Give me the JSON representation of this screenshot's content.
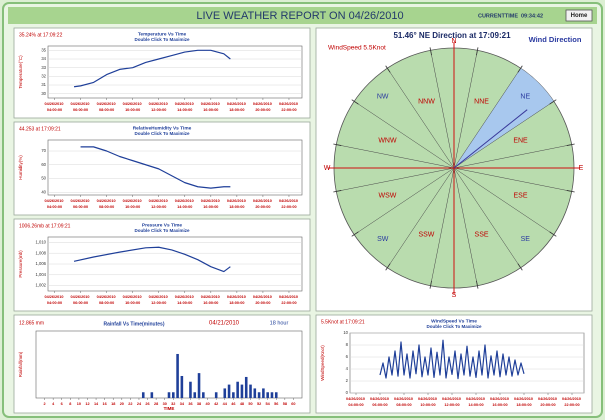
{
  "header": {
    "title": "LIVE WEATHER REPORT ON 04/26/2010",
    "current_time_label": "CURRENTTIME",
    "current_time": "09:34:42",
    "home_button": "Home"
  },
  "chart_data": [
    {
      "type": "line",
      "reading": "35.24% at 17:09:22",
      "title": "Temperature Vs Time",
      "subtitle": "Double Click To Maximize",
      "ylabel": "Temperature(°C)",
      "color": "#1f3f99",
      "x": [
        5.5,
        6,
        7,
        8,
        9,
        10,
        11,
        12,
        13,
        14,
        15,
        16,
        17,
        17.5
      ],
      "values": [
        30.8,
        30.9,
        31.3,
        32.2,
        32.8,
        33.0,
        33.6,
        34.0,
        34.4,
        34.8,
        35.0,
        35.0,
        34.6,
        34.0
      ],
      "xlim": [
        3.5,
        23
      ],
      "ylim": [
        29.5,
        35.5
      ],
      "yticks": [
        30,
        31,
        32,
        33,
        34,
        35
      ],
      "xticks": [
        {
          "value": 4,
          "label": "04/26/2010 04:00:00"
        },
        {
          "value": 6,
          "label": "04/26/2010 06:00:00"
        },
        {
          "value": 8,
          "label": "04/26/2010 08:00:00"
        },
        {
          "value": 10,
          "label": "04/26/2010 10:00:00"
        },
        {
          "value": 12,
          "label": "04/26/2010 12:00:00"
        },
        {
          "value": 14,
          "label": "04/26/2010 14:00:00"
        },
        {
          "value": 16,
          "label": "04/26/2010 16:00:00"
        },
        {
          "value": 18,
          "label": "04/26/2010 18:00:00"
        },
        {
          "value": 20,
          "label": "04/26/2010 20:00:00"
        },
        {
          "value": 22,
          "label": "04/26/2010 22:00:00"
        }
      ]
    },
    {
      "type": "line",
      "reading": "44.253 at 17:09:21",
      "title": "RelativeHumidity Vs Time",
      "subtitle": "Double Click To Maximize",
      "ylabel": "Humidity(%)",
      "color": "#1f3f99",
      "x": [
        6,
        7,
        8,
        9,
        10,
        11,
        12,
        13,
        14,
        15,
        16,
        17,
        17.5
      ],
      "values": [
        73,
        73,
        70,
        66,
        63,
        60,
        57,
        52,
        47,
        44,
        43,
        44,
        44
      ],
      "xlim": [
        3.5,
        23
      ],
      "ylim": [
        38,
        78
      ],
      "yticks": [
        40,
        50,
        60,
        70
      ],
      "xticks": [
        {
          "value": 4,
          "label": "04/26/2010 04:00:00"
        },
        {
          "value": 6,
          "label": "04/26/2010 06:00:00"
        },
        {
          "value": 8,
          "label": "04/26/2010 08:00:00"
        },
        {
          "value": 10,
          "label": "04/26/2010 10:00:00"
        },
        {
          "value": 12,
          "label": "04/26/2010 12:00:00"
        },
        {
          "value": 14,
          "label": "04/26/2010 14:00:00"
        },
        {
          "value": 16,
          "label": "04/26/2010 16:00:00"
        },
        {
          "value": 18,
          "label": "04/26/2010 18:00:00"
        },
        {
          "value": 20,
          "label": "04/26/2010 20:00:00"
        },
        {
          "value": 22,
          "label": "04/26/2010 22:00:00"
        }
      ]
    },
    {
      "type": "line",
      "reading": "1006.26mb at 17:09:21",
      "title": "Pressure Vs Time",
      "subtitle": "Double Click To Maximize",
      "ylabel": "Pressure(mb)",
      "color": "#1f3f99",
      "x": [
        5.5,
        7,
        9,
        11,
        12,
        13,
        14,
        15,
        16,
        17,
        17.5
      ],
      "values": [
        1006.5,
        1007.3,
        1008.2,
        1009.0,
        1009.1,
        1008.6,
        1007.8,
        1006.8,
        1005.5,
        1004.6,
        1005.5
      ],
      "xlim": [
        3.5,
        23
      ],
      "ylim": [
        1001,
        1011
      ],
      "yticks": [
        {
          "value": 1002,
          "label": "1,002"
        },
        {
          "value": 1004,
          "label": "1,004"
        },
        {
          "value": 1006,
          "label": "1,006"
        },
        {
          "value": 1008,
          "label": "1,008"
        },
        {
          "value": 1010,
          "label": "1,010"
        }
      ],
      "xticks": [
        {
          "value": 4,
          "label": "04/26/2010 04:00:00"
        },
        {
          "value": 6,
          "label": "04/26/2010 06:00:00"
        },
        {
          "value": 8,
          "label": "04/26/2010 08:00:00"
        },
        {
          "value": 10,
          "label": "04/26/2010 10:00:00"
        },
        {
          "value": 12,
          "label": "04/26/2010 12:00:00"
        },
        {
          "value": 14,
          "label": "04/26/2010 14:00:00"
        },
        {
          "value": 16,
          "label": "04/26/2010 16:00:00"
        },
        {
          "value": 18,
          "label": "04/26/2010 18:00:00"
        },
        {
          "value": 20,
          "label": "04/26/2010 20:00:00"
        },
        {
          "value": 22,
          "label": "04/26/2010 22:00:00"
        }
      ]
    },
    {
      "type": "compass",
      "direction_text": "51.46° NE Direction at 17:09:21",
      "title": "Wind Direction",
      "speed_text": "WindSpeed 5.5Knot",
      "direction": 51.46,
      "sectors": [
        "N",
        "NNE",
        "NE",
        "ENE",
        "E",
        "ESE",
        "SE",
        "SSE",
        "S",
        "SSW",
        "SW",
        "WSW",
        "W",
        "WNW",
        "NW",
        "NNW"
      ],
      "disc_color": "#b9dcae",
      "highlight_color": "#a8c8ee",
      "needle_color": "#3a3a9a"
    },
    {
      "type": "bar",
      "reading": "12.865 mm",
      "title": "Rainfall Vs Time(minutes)",
      "date": "04/21/2010",
      "hour": "18 hour",
      "ylabel": "Rainfall(mm)",
      "xlabel": "TIME",
      "color": "#1f3f99",
      "x": [
        25,
        27,
        31,
        32,
        33,
        34,
        36,
        37,
        38,
        39,
        42,
        44,
        45,
        46,
        47,
        48,
        49,
        50,
        51,
        52,
        53,
        54,
        55,
        56
      ],
      "values": [
        0.6,
        0.6,
        0.6,
        0.6,
        4.6,
        2.3,
        1.7,
        0.6,
        2.6,
        0.6,
        0.6,
        1.0,
        1.4,
        0.6,
        1.7,
        1.4,
        2.2,
        1.4,
        1.0,
        0.6,
        1.0,
        0.6,
        0.6,
        0.6
      ],
      "xlim": [
        0,
        62
      ],
      "ylim": [
        0,
        7
      ],
      "xticks": [
        2,
        4,
        6,
        8,
        10,
        12,
        14,
        16,
        18,
        20,
        22,
        24,
        26,
        28,
        30,
        32,
        34,
        36,
        38,
        40,
        42,
        44,
        46,
        48,
        50,
        52,
        54,
        56,
        58,
        60
      ]
    },
    {
      "type": "line",
      "reading": "5.5Knot at 17:09:21",
      "title": "WindSpeed Vs Time",
      "subtitle": "Double Click To Maximize",
      "ylabel": "WindSpeed(Knot)",
      "color": "#1f3f99",
      "x": [
        6,
        6.25,
        6.5,
        6.75,
        7,
        7.25,
        7.5,
        7.75,
        8,
        8.25,
        8.5,
        8.75,
        9,
        9.25,
        9.5,
        9.75,
        10,
        10.25,
        10.5,
        10.75,
        11,
        11.25,
        11.5,
        11.75,
        12,
        12.25,
        12.5,
        12.75,
        13,
        13.25,
        13.5,
        13.75,
        14,
        14.25,
        14.5,
        14.75,
        15,
        15.25,
        15.5,
        15.75,
        16,
        16.25,
        16.5,
        16.75,
        17,
        17.25,
        17.5,
        17.75,
        18
      ],
      "values": [
        3,
        5,
        2.5,
        6,
        3,
        7,
        2.8,
        8.5,
        3,
        6.5,
        2.5,
        7,
        3.2,
        8,
        2.7,
        6,
        3,
        7.5,
        2.6,
        6.8,
        3,
        8.8,
        2.5,
        6,
        3.1,
        7,
        2.4,
        6.5,
        3,
        7.8,
        2.8,
        6,
        2.6,
        7,
        3,
        8,
        2.5,
        6.2,
        3,
        7,
        2.7,
        6.5,
        3,
        6,
        2.8,
        5.5,
        3,
        5,
        3.2
      ],
      "xlim": [
        3.5,
        23
      ],
      "ylim": [
        0,
        10
      ],
      "yticks": [
        0,
        2,
        4,
        6,
        8,
        10
      ],
      "xticks": [
        {
          "value": 4,
          "label": "04/26/2010 04:00:00"
        },
        {
          "value": 6,
          "label": "04/26/2010 06:00:00"
        },
        {
          "value": 8,
          "label": "04/26/2010 08:00:00"
        },
        {
          "value": 10,
          "label": "04/26/2010 10:00:00"
        },
        {
          "value": 12,
          "label": "04/26/2010 12:00:00"
        },
        {
          "value": 14,
          "label": "04/26/2010 14:00:00"
        },
        {
          "value": 16,
          "label": "04/26/2010 16:00:00"
        },
        {
          "value": 18,
          "label": "04/26/2010 18:00:00"
        },
        {
          "value": 20,
          "label": "04/26/2010 20:00:00"
        },
        {
          "value": 22,
          "label": "04/26/2010 22:00:00"
        }
      ]
    }
  ]
}
